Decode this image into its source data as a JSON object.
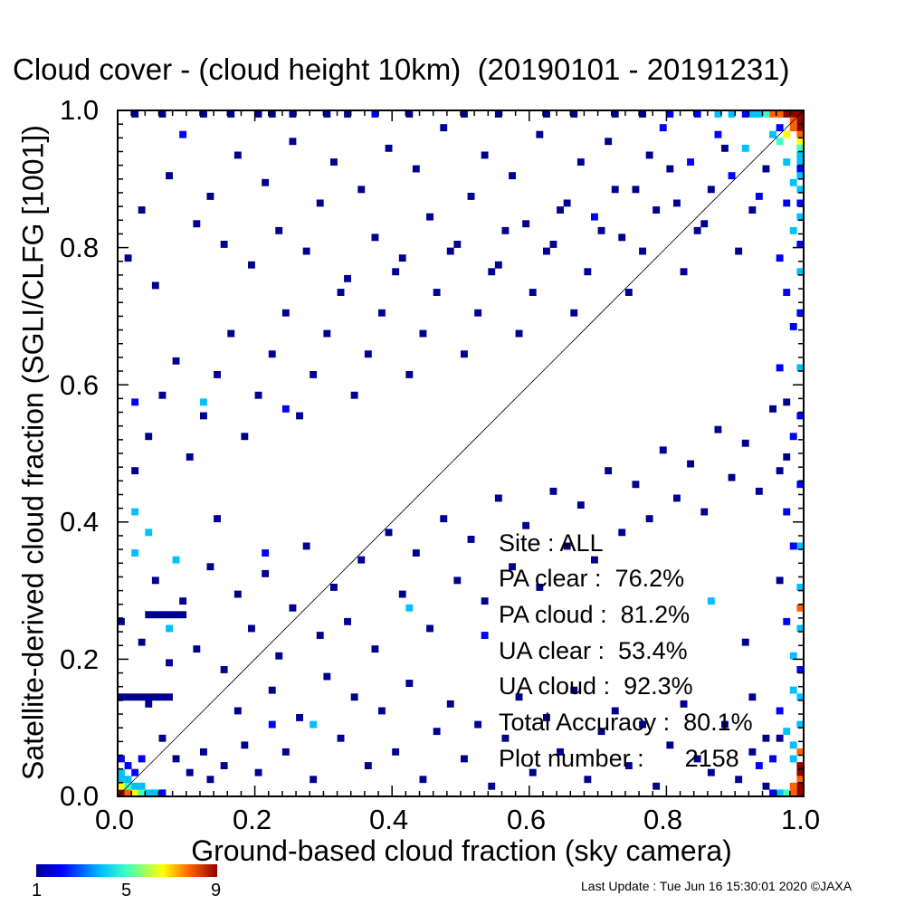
{
  "title": "Cloud cover - (cloud height 10km)  (20190101 - 20191231)",
  "footer": "Last Update : Tue Jun 16 15:30:01 2020  ©JAXA",
  "colorbar": {
    "colors": [
      "#00008f",
      "#0000ff",
      "#00c0ff",
      "#40ffc0",
      "#ffff00",
      "#ff6000",
      "#8f0000"
    ],
    "labels": [
      "1",
      "5",
      "9"
    ]
  },
  "stats": {
    "site": "Site : ALL",
    "pa_clear": "PA clear :  76.2%",
    "pa_cloud": "PA cloud :  81.2%",
    "ua_clear": "UA clear :  53.4%",
    "ua_cloud": "UA cloud :  92.3%",
    "total_accuracy": "Total Accuracy :  80.1%",
    "plot_number": "Plot number :      2158"
  },
  "chart_data": {
    "type": "heatmap",
    "title": "Cloud cover - (cloud height 10km)  (20190101 - 20191231)",
    "xlabel": "Ground-based cloud fraction (sky camera)",
    "ylabel": "Satellite-derived cloud fraction (SGLI/CLFG [1001])",
    "xlim": [
      0.0,
      1.0
    ],
    "ylim": [
      0.0,
      1.0
    ],
    "xticks": [
      "0.0",
      "0.2",
      "0.4",
      "0.6",
      "0.8",
      "1.0"
    ],
    "yticks": [
      "0.0",
      "0.2",
      "0.4",
      "0.6",
      "0.8",
      "1.0"
    ],
    "bin_size": 0.01,
    "color_scale": {
      "min": 1,
      "max": 9
    },
    "reference_line": "1:1",
    "cells": [
      [
        0.99,
        0.99,
        9
      ],
      [
        0.98,
        0.99,
        9
      ],
      [
        0.97,
        0.99,
        9
      ],
      [
        0.96,
        0.99,
        8
      ],
      [
        0.99,
        0.98,
        9
      ],
      [
        0.99,
        0.97,
        9
      ],
      [
        0.98,
        0.98,
        8
      ],
      [
        0.95,
        0.99,
        7
      ],
      [
        0.94,
        0.99,
        5
      ],
      [
        0.93,
        0.99,
        4
      ],
      [
        0.92,
        0.99,
        3
      ],
      [
        0.91,
        0.99,
        2
      ],
      [
        0.99,
        0.96,
        7
      ],
      [
        0.99,
        0.95,
        6
      ],
      [
        0.99,
        0.94,
        5
      ],
      [
        0.99,
        0.93,
        4
      ],
      [
        0.99,
        0.92,
        3
      ],
      [
        0.99,
        0.91,
        2
      ],
      [
        0.99,
        0.9,
        4
      ],
      [
        0.99,
        0.88,
        3
      ],
      [
        0.99,
        0.86,
        2
      ],
      [
        0.99,
        0.84,
        3
      ],
      [
        0.99,
        0.8,
        2
      ],
      [
        0.99,
        0.76,
        3
      ],
      [
        0.99,
        0.7,
        2
      ],
      [
        0.99,
        0.62,
        3
      ],
      [
        0.99,
        0.55,
        2
      ],
      [
        0.99,
        0.45,
        2
      ],
      [
        0.99,
        0.36,
        3
      ],
      [
        0.99,
        0.3,
        4
      ],
      [
        0.99,
        0.27,
        7
      ],
      [
        0.99,
        0.24,
        3
      ],
      [
        0.99,
        0.18,
        2
      ],
      [
        0.99,
        0.14,
        4
      ],
      [
        0.99,
        0.1,
        3
      ],
      [
        0.99,
        0.06,
        8
      ],
      [
        0.99,
        0.04,
        9
      ],
      [
        0.99,
        0.03,
        9
      ],
      [
        0.99,
        0.02,
        8
      ],
      [
        0.99,
        0.01,
        9
      ],
      [
        0.99,
        0.0,
        9
      ],
      [
        0.98,
        0.01,
        7
      ],
      [
        0.98,
        0.0,
        8
      ],
      [
        0.97,
        0.0,
        5
      ],
      [
        0.96,
        0.0,
        3
      ],
      [
        0.95,
        0.0,
        2
      ],
      [
        0.98,
        0.05,
        4
      ],
      [
        0.98,
        0.2,
        3
      ],
      [
        0.0,
        0.0,
        9
      ],
      [
        0.01,
        0.0,
        8
      ],
      [
        0.02,
        0.0,
        6
      ],
      [
        0.03,
        0.0,
        5
      ],
      [
        0.04,
        0.0,
        4
      ],
      [
        0.05,
        0.0,
        3
      ],
      [
        0.06,
        0.0,
        2
      ],
      [
        0.0,
        0.01,
        6
      ],
      [
        0.01,
        0.01,
        5
      ],
      [
        0.02,
        0.01,
        4
      ],
      [
        0.03,
        0.01,
        3
      ],
      [
        0.0,
        0.02,
        4
      ],
      [
        0.01,
        0.02,
        3
      ],
      [
        0.0,
        0.03,
        3
      ],
      [
        0.02,
        0.03,
        2
      ],
      [
        0.01,
        0.04,
        2
      ],
      [
        0.0,
        0.05,
        2
      ],
      [
        0.03,
        0.05,
        2
      ],
      [
        0.0,
        0.14,
        1
      ],
      [
        0.01,
        0.14,
        1
      ],
      [
        0.02,
        0.14,
        1
      ],
      [
        0.03,
        0.14,
        1
      ],
      [
        0.04,
        0.14,
        1
      ],
      [
        0.05,
        0.14,
        1
      ],
      [
        0.06,
        0.14,
        1
      ],
      [
        0.07,
        0.14,
        1
      ],
      [
        0.0,
        0.25,
        1
      ],
      [
        0.02,
        0.35,
        3
      ],
      [
        0.04,
        0.26,
        1
      ],
      [
        0.05,
        0.26,
        1
      ],
      [
        0.06,
        0.26,
        1
      ],
      [
        0.07,
        0.26,
        1
      ],
      [
        0.08,
        0.26,
        1
      ],
      [
        0.09,
        0.26,
        1
      ],
      [
        0.02,
        0.57,
        2
      ],
      [
        0.02,
        0.41,
        3
      ],
      [
        0.04,
        0.38,
        3
      ],
      [
        0.07,
        0.24,
        3
      ],
      [
        0.08,
        0.34,
        3
      ],
      [
        0.12,
        0.57,
        3
      ],
      [
        0.14,
        0.4,
        1
      ],
      [
        0.21,
        0.35,
        2
      ],
      [
        0.22,
        0.1,
        2
      ],
      [
        0.24,
        0.56,
        2
      ],
      [
        0.28,
        0.1,
        3
      ],
      [
        0.42,
        0.27,
        3
      ],
      [
        0.53,
        0.23,
        2
      ],
      [
        0.86,
        0.28,
        4
      ],
      [
        0.04,
        0.13,
        1
      ],
      [
        0.06,
        0.08,
        1
      ],
      [
        0.08,
        0.05,
        1
      ],
      [
        0.1,
        0.03,
        1
      ],
      [
        0.12,
        0.06,
        1
      ],
      [
        0.13,
        0.02,
        1
      ],
      [
        0.15,
        0.04,
        1
      ],
      [
        0.17,
        0.12,
        1
      ],
      [
        0.18,
        0.07,
        1
      ],
      [
        0.2,
        0.03,
        1
      ],
      [
        0.22,
        0.15,
        1
      ],
      [
        0.24,
        0.06,
        1
      ],
      [
        0.26,
        0.11,
        1
      ],
      [
        0.28,
        0.02,
        1
      ],
      [
        0.3,
        0.17,
        1
      ],
      [
        0.32,
        0.08,
        1
      ],
      [
        0.34,
        0.14,
        1
      ],
      [
        0.36,
        0.04,
        1
      ],
      [
        0.38,
        0.12,
        1
      ],
      [
        0.4,
        0.06,
        1
      ],
      [
        0.42,
        0.16,
        1
      ],
      [
        0.44,
        0.02,
        1
      ],
      [
        0.46,
        0.09,
        1
      ],
      [
        0.48,
        0.13,
        1
      ],
      [
        0.5,
        0.05,
        1
      ],
      [
        0.52,
        0.1,
        1
      ],
      [
        0.54,
        0.01,
        1
      ],
      [
        0.56,
        0.08,
        1
      ],
      [
        0.58,
        0.14,
        1
      ],
      [
        0.6,
        0.03,
        1
      ],
      [
        0.62,
        0.11,
        1
      ],
      [
        0.64,
        0.06,
        1
      ],
      [
        0.66,
        0.15,
        1
      ],
      [
        0.68,
        0.02,
        1
      ],
      [
        0.7,
        0.09,
        1
      ],
      [
        0.72,
        0.12,
        1
      ],
      [
        0.74,
        0.04,
        1
      ],
      [
        0.76,
        0.1,
        1
      ],
      [
        0.78,
        0.01,
        1
      ],
      [
        0.8,
        0.07,
        1
      ],
      [
        0.82,
        0.13,
        1
      ],
      [
        0.84,
        0.05,
        1
      ],
      [
        0.86,
        0.03,
        1
      ],
      [
        0.88,
        0.1,
        1
      ],
      [
        0.9,
        0.02,
        1
      ],
      [
        0.92,
        0.06,
        1
      ],
      [
        0.94,
        0.01,
        1
      ],
      [
        0.96,
        0.08,
        1
      ],
      [
        0.03,
        0.22,
        1
      ],
      [
        0.05,
        0.31,
        1
      ],
      [
        0.07,
        0.19,
        1
      ],
      [
        0.09,
        0.28,
        1
      ],
      [
        0.11,
        0.21,
        1
      ],
      [
        0.13,
        0.33,
        1
      ],
      [
        0.15,
        0.18,
        1
      ],
      [
        0.17,
        0.29,
        1
      ],
      [
        0.19,
        0.24,
        1
      ],
      [
        0.21,
        0.32,
        1
      ],
      [
        0.23,
        0.2,
        1
      ],
      [
        0.25,
        0.27,
        1
      ],
      [
        0.27,
        0.36,
        1
      ],
      [
        0.29,
        0.23,
        1
      ],
      [
        0.31,
        0.3,
        1
      ],
      [
        0.33,
        0.25,
        1
      ],
      [
        0.35,
        0.34,
        1
      ],
      [
        0.37,
        0.21,
        1
      ],
      [
        0.39,
        0.38,
        1
      ],
      [
        0.41,
        0.29,
        1
      ],
      [
        0.43,
        0.35,
        1
      ],
      [
        0.45,
        0.24,
        1
      ],
      [
        0.47,
        0.4,
        1
      ],
      [
        0.49,
        0.31,
        1
      ],
      [
        0.51,
        0.37,
        1
      ],
      [
        0.53,
        0.28,
        1
      ],
      [
        0.55,
        0.43,
        1
      ],
      [
        0.57,
        0.33,
        1
      ],
      [
        0.59,
        0.39,
        1
      ],
      [
        0.61,
        0.3,
        1
      ],
      [
        0.63,
        0.44,
        1
      ],
      [
        0.65,
        0.36,
        1
      ],
      [
        0.67,
        0.42,
        1
      ],
      [
        0.69,
        0.34,
        1
      ],
      [
        0.71,
        0.47,
        1
      ],
      [
        0.73,
        0.38,
        1
      ],
      [
        0.75,
        0.45,
        1
      ],
      [
        0.77,
        0.4,
        1
      ],
      [
        0.79,
        0.5,
        1
      ],
      [
        0.81,
        0.43,
        1
      ],
      [
        0.83,
        0.48,
        1
      ],
      [
        0.85,
        0.41,
        1
      ],
      [
        0.87,
        0.53,
        1
      ],
      [
        0.89,
        0.46,
        1
      ],
      [
        0.91,
        0.51,
        1
      ],
      [
        0.93,
        0.44,
        1
      ],
      [
        0.95,
        0.56,
        1
      ],
      [
        0.97,
        0.49,
        1
      ],
      [
        0.02,
        0.47,
        1
      ],
      [
        0.04,
        0.52,
        1
      ],
      [
        0.06,
        0.58,
        1
      ],
      [
        0.08,
        0.63,
        1
      ],
      [
        0.1,
        0.49,
        1
      ],
      [
        0.12,
        0.55,
        1
      ],
      [
        0.14,
        0.61,
        1
      ],
      [
        0.16,
        0.67,
        1
      ],
      [
        0.18,
        0.52,
        1
      ],
      [
        0.2,
        0.58,
        1
      ],
      [
        0.22,
        0.64,
        1
      ],
      [
        0.24,
        0.7,
        1
      ],
      [
        0.26,
        0.55,
        1
      ],
      [
        0.28,
        0.61,
        1
      ],
      [
        0.3,
        0.67,
        1
      ],
      [
        0.32,
        0.73,
        1
      ],
      [
        0.34,
        0.58,
        1
      ],
      [
        0.36,
        0.64,
        1
      ],
      [
        0.38,
        0.7,
        1
      ],
      [
        0.4,
        0.76,
        1
      ],
      [
        0.42,
        0.61,
        1
      ],
      [
        0.44,
        0.67,
        1
      ],
      [
        0.46,
        0.73,
        1
      ],
      [
        0.48,
        0.79,
        1
      ],
      [
        0.5,
        0.64,
        1
      ],
      [
        0.52,
        0.7,
        1
      ],
      [
        0.54,
        0.76,
        1
      ],
      [
        0.56,
        0.82,
        1
      ],
      [
        0.58,
        0.67,
        1
      ],
      [
        0.6,
        0.73,
        1
      ],
      [
        0.62,
        0.79,
        1
      ],
      [
        0.64,
        0.85,
        1
      ],
      [
        0.66,
        0.7,
        1
      ],
      [
        0.68,
        0.76,
        1
      ],
      [
        0.7,
        0.82,
        1
      ],
      [
        0.72,
        0.88,
        1
      ],
      [
        0.74,
        0.73,
        1
      ],
      [
        0.76,
        0.79,
        1
      ],
      [
        0.78,
        0.85,
        1
      ],
      [
        0.8,
        0.91,
        1
      ],
      [
        0.82,
        0.76,
        1
      ],
      [
        0.84,
        0.82,
        1
      ],
      [
        0.86,
        0.88,
        1
      ],
      [
        0.88,
        0.94,
        1
      ],
      [
        0.9,
        0.79,
        1
      ],
      [
        0.92,
        0.85,
        1
      ],
      [
        0.94,
        0.91,
        1
      ],
      [
        0.96,
        0.97,
        2
      ],
      [
        0.01,
        0.78,
        1
      ],
      [
        0.03,
        0.85,
        1
      ],
      [
        0.05,
        0.74,
        1
      ],
      [
        0.07,
        0.9,
        1
      ],
      [
        0.09,
        0.96,
        2
      ],
      [
        0.11,
        0.83,
        1
      ],
      [
        0.13,
        0.87,
        1
      ],
      [
        0.15,
        0.8,
        1
      ],
      [
        0.17,
        0.93,
        1
      ],
      [
        0.19,
        0.77,
        1
      ],
      [
        0.21,
        0.89,
        1
      ],
      [
        0.23,
        0.82,
        1
      ],
      [
        0.25,
        0.95,
        1
      ],
      [
        0.27,
        0.79,
        1
      ],
      [
        0.29,
        0.86,
        1
      ],
      [
        0.31,
        0.92,
        1
      ],
      [
        0.33,
        0.75,
        1
      ],
      [
        0.35,
        0.88,
        1
      ],
      [
        0.37,
        0.81,
        1
      ],
      [
        0.39,
        0.94,
        1
      ],
      [
        0.41,
        0.78,
        1
      ],
      [
        0.43,
        0.91,
        1
      ],
      [
        0.45,
        0.84,
        1
      ],
      [
        0.47,
        0.97,
        1
      ],
      [
        0.49,
        0.8,
        1
      ],
      [
        0.51,
        0.87,
        1
      ],
      [
        0.53,
        0.93,
        1
      ],
      [
        0.55,
        0.77,
        1
      ],
      [
        0.57,
        0.9,
        1
      ],
      [
        0.59,
        0.83,
        1
      ],
      [
        0.61,
        0.96,
        1
      ],
      [
        0.63,
        0.8,
        1
      ],
      [
        0.65,
        0.86,
        1
      ],
      [
        0.67,
        0.92,
        1
      ],
      [
        0.69,
        0.84,
        2
      ],
      [
        0.71,
        0.95,
        1
      ],
      [
        0.73,
        0.81,
        1
      ],
      [
        0.75,
        0.88,
        1
      ],
      [
        0.77,
        0.93,
        1
      ],
      [
        0.79,
        0.97,
        2
      ],
      [
        0.81,
        0.86,
        1
      ],
      [
        0.83,
        0.92,
        2
      ],
      [
        0.85,
        0.83,
        1
      ],
      [
        0.87,
        0.96,
        2
      ],
      [
        0.89,
        0.9,
        2
      ],
      [
        0.91,
        0.94,
        3
      ],
      [
        0.93,
        0.87,
        2
      ],
      [
        0.95,
        0.96,
        3
      ],
      [
        0.2,
        0.99,
        1
      ],
      [
        0.22,
        0.99,
        1
      ],
      [
        0.25,
        0.99,
        1
      ],
      [
        0.3,
        0.99,
        1
      ],
      [
        0.33,
        0.99,
        1
      ],
      [
        0.37,
        0.99,
        2
      ],
      [
        0.42,
        0.99,
        1
      ],
      [
        0.5,
        0.99,
        1
      ],
      [
        0.55,
        0.99,
        1
      ],
      [
        0.62,
        0.99,
        1
      ],
      [
        0.66,
        0.99,
        1
      ],
      [
        0.72,
        0.99,
        1
      ],
      [
        0.76,
        0.99,
        1
      ],
      [
        0.8,
        0.99,
        2
      ],
      [
        0.84,
        0.99,
        2
      ],
      [
        0.87,
        0.99,
        3
      ],
      [
        0.89,
        0.99,
        4
      ],
      [
        0.02,
        0.99,
        1
      ],
      [
        0.06,
        0.99,
        1
      ],
      [
        0.12,
        0.99,
        1
      ],
      [
        0.16,
        0.99,
        1
      ],
      [
        0.96,
        0.95,
        5
      ],
      [
        0.97,
        0.96,
        6
      ],
      [
        0.98,
        0.97,
        7
      ],
      [
        0.97,
        0.92,
        3
      ],
      [
        0.98,
        0.89,
        4
      ],
      [
        0.97,
        0.86,
        2
      ],
      [
        0.98,
        0.82,
        3
      ],
      [
        0.96,
        0.78,
        2
      ],
      [
        0.97,
        0.73,
        2
      ],
      [
        0.98,
        0.68,
        2
      ],
      [
        0.96,
        0.62,
        2
      ],
      [
        0.97,
        0.57,
        1
      ],
      [
        0.98,
        0.52,
        2
      ],
      [
        0.96,
        0.47,
        1
      ],
      [
        0.97,
        0.41,
        2
      ],
      [
        0.98,
        0.36,
        2
      ],
      [
        0.96,
        0.31,
        1
      ],
      [
        0.97,
        0.25,
        2
      ],
      [
        0.98,
        0.15,
        3
      ],
      [
        0.96,
        0.12,
        2
      ],
      [
        0.97,
        0.09,
        3
      ],
      [
        0.98,
        0.07,
        4
      ],
      [
        0.95,
        0.05,
        2
      ],
      [
        0.94,
        0.08,
        1
      ],
      [
        0.93,
        0.04,
        2
      ],
      [
        0.92,
        0.14,
        1
      ],
      [
        0.91,
        0.22,
        1
      ]
    ]
  }
}
